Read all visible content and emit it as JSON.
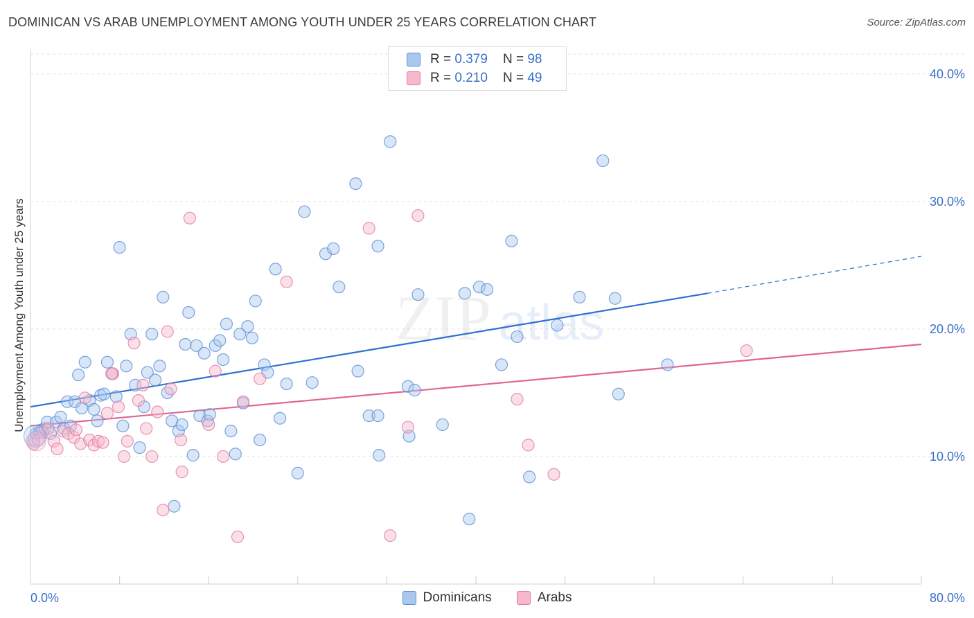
{
  "header": {
    "title": "DOMINICAN VS ARAB UNEMPLOYMENT AMONG YOUTH UNDER 25 YEARS CORRELATION CHART",
    "source": "Source: ZipAtlas.com"
  },
  "legend": {
    "rows": [
      {
        "r_label": "R =",
        "r_value": "0.379",
        "n_label": "N =",
        "n_value": "98"
      },
      {
        "r_label": "R =",
        "r_value": "0.210",
        "n_label": "N =",
        "n_value": "49"
      }
    ],
    "bottom": [
      "Dominicans",
      "Arabs"
    ]
  },
  "watermark": {
    "zip": "ZIP",
    "atlas": "atlas"
  },
  "colors": {
    "blue_fill": "#a8c8f0",
    "blue_stroke": "#5b8ed6",
    "blue_line": "#2f6fd0",
    "pink_fill": "#f6b8cc",
    "pink_stroke": "#e47aa0",
    "pink_line": "#e0658f",
    "tick_label": "#3a6fc9",
    "grid": "#e3e3e3"
  },
  "chart_data": {
    "type": "scatter",
    "title": "DOMINICAN VS ARAB UNEMPLOYMENT AMONG YOUTH UNDER 25 YEARS CORRELATION CHART",
    "xlabel": "",
    "ylabel": "Unemployment Among Youth under 25 years",
    "xlim": [
      0,
      80
    ],
    "ylim": [
      0,
      42
    ],
    "x_tick_labels": [
      "0.0%",
      "80.0%"
    ],
    "y_ticks": [
      10,
      20,
      30,
      40
    ],
    "y_tick_labels": [
      "10.0%",
      "20.0%",
      "30.0%",
      "40.0%"
    ],
    "grid": true,
    "legend_position": "top-center",
    "series": [
      {
        "name": "Dominicans",
        "r": 0.379,
        "n": 98,
        "trend": {
          "x0": 0,
          "y0": 13.9,
          "x1": 60.8,
          "y1": 22.8,
          "dash_to_x": 80,
          "dash_to_y": 25.7
        },
        "points": [
          [
            0.3,
            11.3
          ],
          [
            0.5,
            11.8
          ],
          [
            0.8,
            11.9
          ],
          [
            1.0,
            12.1
          ],
          [
            1.3,
            12.2
          ],
          [
            1.5,
            12.7
          ],
          [
            1.8,
            11.8
          ],
          [
            2.3,
            12.7
          ],
          [
            2.7,
            13.1
          ],
          [
            3.0,
            12.2
          ],
          [
            3.3,
            14.3
          ],
          [
            3.6,
            12.4
          ],
          [
            4.0,
            14.3
          ],
          [
            4.3,
            16.4
          ],
          [
            4.6,
            13.8
          ],
          [
            4.9,
            17.4
          ],
          [
            5.3,
            14.4
          ],
          [
            5.7,
            13.7
          ],
          [
            6.0,
            12.8
          ],
          [
            6.3,
            14.8
          ],
          [
            6.6,
            14.9
          ],
          [
            6.9,
            17.4
          ],
          [
            7.3,
            16.5
          ],
          [
            7.7,
            14.7
          ],
          [
            8.0,
            26.4
          ],
          [
            8.3,
            12.4
          ],
          [
            8.6,
            17.1
          ],
          [
            9.0,
            19.6
          ],
          [
            9.4,
            15.6
          ],
          [
            9.8,
            10.7
          ],
          [
            10.2,
            13.9
          ],
          [
            10.5,
            16.6
          ],
          [
            10.9,
            19.6
          ],
          [
            11.2,
            16.0
          ],
          [
            11.6,
            17.1
          ],
          [
            11.9,
            22.5
          ],
          [
            12.3,
            15.0
          ],
          [
            12.7,
            12.8
          ],
          [
            12.9,
            6.1
          ],
          [
            13.3,
            12.0
          ],
          [
            13.6,
            12.5
          ],
          [
            13.9,
            18.8
          ],
          [
            14.2,
            21.3
          ],
          [
            14.6,
            10.1
          ],
          [
            14.9,
            18.7
          ],
          [
            15.2,
            13.2
          ],
          [
            15.6,
            18.1
          ],
          [
            15.9,
            12.8
          ],
          [
            16.1,
            13.3
          ],
          [
            16.6,
            18.7
          ],
          [
            17.0,
            19.1
          ],
          [
            17.3,
            17.6
          ],
          [
            17.6,
            20.4
          ],
          [
            18.0,
            12.0
          ],
          [
            18.4,
            10.2
          ],
          [
            18.8,
            19.6
          ],
          [
            19.1,
            14.2
          ],
          [
            19.5,
            20.2
          ],
          [
            19.9,
            19.3
          ],
          [
            20.2,
            22.2
          ],
          [
            20.6,
            11.3
          ],
          [
            21.0,
            17.2
          ],
          [
            21.3,
            16.6
          ],
          [
            22.0,
            24.7
          ],
          [
            22.4,
            13.0
          ],
          [
            23.0,
            15.7
          ],
          [
            24.0,
            8.7
          ],
          [
            24.6,
            29.2
          ],
          [
            25.3,
            15.8
          ],
          [
            26.5,
            25.9
          ],
          [
            27.2,
            26.3
          ],
          [
            27.7,
            23.3
          ],
          [
            29.2,
            31.4
          ],
          [
            29.4,
            16.7
          ],
          [
            30.4,
            13.2
          ],
          [
            31.2,
            13.2
          ],
          [
            31.3,
            10.1
          ],
          [
            31.2,
            26.5
          ],
          [
            32.3,
            34.7
          ],
          [
            33.9,
            15.5
          ],
          [
            34.0,
            11.6
          ],
          [
            34.5,
            15.2
          ],
          [
            34.8,
            22.7
          ],
          [
            37.0,
            12.5
          ],
          [
            39.0,
            22.8
          ],
          [
            39.4,
            5.1
          ],
          [
            40.3,
            23.3
          ],
          [
            41.0,
            23.1
          ],
          [
            42.3,
            17.2
          ],
          [
            43.2,
            26.9
          ],
          [
            43.7,
            19.4
          ],
          [
            44.8,
            8.4
          ],
          [
            47.3,
            20.3
          ],
          [
            49.3,
            22.5
          ],
          [
            51.4,
            33.2
          ],
          [
            52.5,
            22.4
          ],
          [
            52.8,
            14.9
          ],
          [
            57.2,
            17.2
          ]
        ]
      },
      {
        "name": "Arabs",
        "r": 0.21,
        "n": 49,
        "trend": {
          "x0": 0,
          "y0": 12.4,
          "x1": 80,
          "y1": 18.8
        },
        "points": [
          [
            0.3,
            11.0
          ],
          [
            0.7,
            11.3
          ],
          [
            1.1,
            11.9
          ],
          [
            1.6,
            12.2
          ],
          [
            2.1,
            11.2
          ],
          [
            2.4,
            10.6
          ],
          [
            2.9,
            12.0
          ],
          [
            3.4,
            11.8
          ],
          [
            3.9,
            11.5
          ],
          [
            4.1,
            12.1
          ],
          [
            4.5,
            11.0
          ],
          [
            4.9,
            14.6
          ],
          [
            5.3,
            11.3
          ],
          [
            5.7,
            10.9
          ],
          [
            6.1,
            11.2
          ],
          [
            6.5,
            11.1
          ],
          [
            6.9,
            13.4
          ],
          [
            7.4,
            16.5
          ],
          [
            7.9,
            13.9
          ],
          [
            8.4,
            10.0
          ],
          [
            8.7,
            11.2
          ],
          [
            9.3,
            18.9
          ],
          [
            9.7,
            14.4
          ],
          [
            10.1,
            15.6
          ],
          [
            10.4,
            12.2
          ],
          [
            10.9,
            10.0
          ],
          [
            11.4,
            13.5
          ],
          [
            11.9,
            5.8
          ],
          [
            12.3,
            19.8
          ],
          [
            12.6,
            15.3
          ],
          [
            13.5,
            11.3
          ],
          [
            13.6,
            8.8
          ],
          [
            14.3,
            28.7
          ],
          [
            16.0,
            12.5
          ],
          [
            16.6,
            16.7
          ],
          [
            17.3,
            10.0
          ],
          [
            18.6,
            3.7
          ],
          [
            19.1,
            14.3
          ],
          [
            20.6,
            16.1
          ],
          [
            23.0,
            23.7
          ],
          [
            30.4,
            27.9
          ],
          [
            32.3,
            3.8
          ],
          [
            33.9,
            12.3
          ],
          [
            34.8,
            28.9
          ],
          [
            43.7,
            14.5
          ],
          [
            44.7,
            10.9
          ],
          [
            47.0,
            8.6
          ],
          [
            64.3,
            18.3
          ],
          [
            7.3,
            16.5
          ]
        ]
      }
    ]
  }
}
